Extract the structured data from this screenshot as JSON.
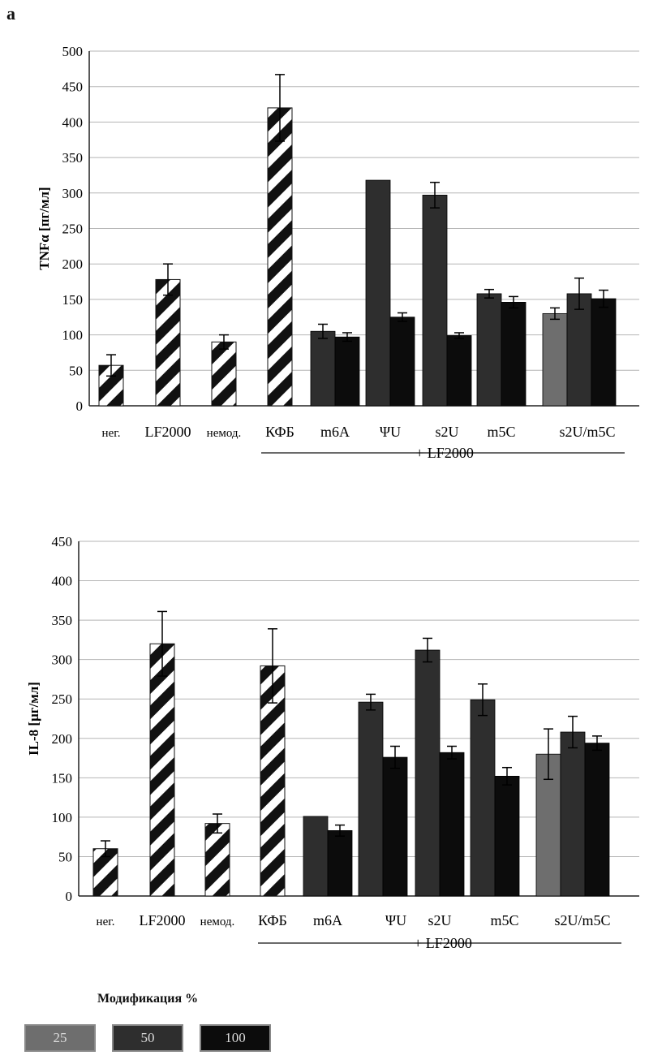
{
  "panel_label": "a",
  "legend": {
    "title": "Модификация %",
    "items": [
      {
        "label": "25",
        "color": "#6e6e6e"
      },
      {
        "label": "50",
        "color": "#2e2e2e"
      },
      {
        "label": "100",
        "color": "#0c0c0c"
      }
    ]
  },
  "colors": {
    "m25": "#6e6e6e",
    "m50": "#2e2e2e",
    "m100": "#0c0c0c",
    "grid": "#b5b5b5"
  },
  "chart_data": [
    {
      "type": "bar",
      "ylabel": "TNFα [пг/мл]",
      "ylim": [
        0,
        500
      ],
      "yticks": [
        0,
        50,
        100,
        150,
        200,
        250,
        300,
        350,
        400,
        450,
        500
      ],
      "group_note": "+ LF2000",
      "categories": [
        "нег.",
        "LF2000",
        "немод.",
        "КФБ",
        "m6A",
        "ΨU",
        "s2U",
        "m5C",
        "s2U/m5C"
      ],
      "controls": [
        {
          "category": "нег.",
          "value": 57,
          "error": 15
        },
        {
          "category": "LF2000",
          "value": 178,
          "error": 22
        },
        {
          "category": "немод.",
          "value": 90,
          "error": 10
        },
        {
          "category": "КФБ",
          "value": 420,
          "error": 47
        }
      ],
      "series": [
        {
          "modification": "25",
          "values": [
            null,
            null,
            null,
            null,
            null,
            null,
            null,
            null,
            130
          ],
          "errors": [
            null,
            null,
            null,
            null,
            null,
            null,
            null,
            null,
            8
          ]
        },
        {
          "modification": "50",
          "values": [
            null,
            null,
            null,
            null,
            105,
            318,
            297,
            158,
            158
          ],
          "errors": [
            null,
            null,
            null,
            null,
            10,
            0,
            18,
            6,
            22
          ]
        },
        {
          "modification": "100",
          "values": [
            null,
            null,
            null,
            null,
            97,
            125,
            99,
            146,
            151
          ],
          "errors": [
            null,
            null,
            null,
            null,
            6,
            6,
            4,
            8,
            12
          ]
        }
      ]
    },
    {
      "type": "bar",
      "ylabel": "IL-8 [μг/мл]",
      "ylim": [
        0,
        450
      ],
      "yticks": [
        0,
        50,
        100,
        150,
        200,
        250,
        300,
        350,
        400,
        450
      ],
      "group_note": "+ LF2000",
      "categories": [
        "нег.",
        "LF2000",
        "немод.",
        "КФБ",
        "m6A",
        "ΨU",
        "s2U",
        "m5C",
        "s2U/m5C"
      ],
      "controls": [
        {
          "category": "нег.",
          "value": 60,
          "error": 10
        },
        {
          "category": "LF2000",
          "value": 320,
          "error": 41
        },
        {
          "category": "немод.",
          "value": 92,
          "error": 12
        },
        {
          "category": "КФБ",
          "value": 292,
          "error": 47
        }
      ],
      "series": [
        {
          "modification": "25",
          "values": [
            null,
            null,
            null,
            null,
            null,
            null,
            null,
            null,
            180
          ],
          "errors": [
            null,
            null,
            null,
            null,
            null,
            null,
            null,
            null,
            32
          ]
        },
        {
          "modification": "50",
          "values": [
            null,
            null,
            null,
            null,
            101,
            246,
            312,
            249,
            208
          ],
          "errors": [
            null,
            null,
            null,
            null,
            0,
            10,
            15,
            20,
            20
          ]
        },
        {
          "modification": "100",
          "values": [
            null,
            null,
            null,
            null,
            83,
            176,
            182,
            152,
            194
          ],
          "errors": [
            null,
            null,
            null,
            null,
            7,
            14,
            8,
            11,
            9
          ]
        }
      ]
    }
  ]
}
